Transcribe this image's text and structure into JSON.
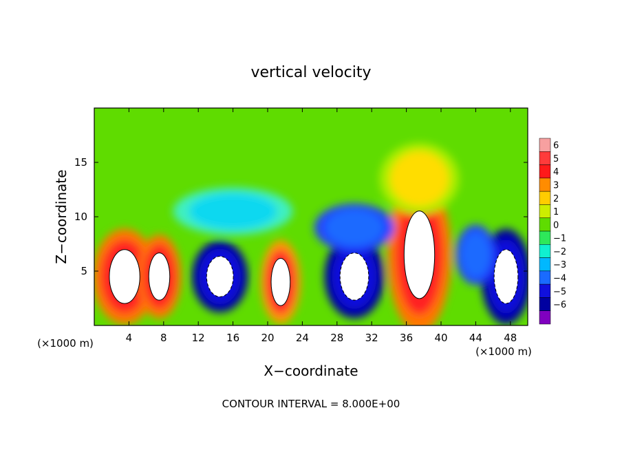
{
  "chart_data": {
    "type": "heatmap",
    "title": "vertical velocity",
    "xlabel": "X−coordinate",
    "ylabel": "Z−coordinate",
    "x_units_left": "(×1000 m)",
    "x_units_right": "(×1000 m)",
    "footer": "CONTOUR INTERVAL = 8.000E+00",
    "xlim": [
      0,
      50
    ],
    "ylim": [
      0,
      20
    ],
    "x_ticks": [
      4,
      8,
      12,
      16,
      20,
      24,
      28,
      32,
      36,
      40,
      44,
      48
    ],
    "y_ticks": [
      5,
      10,
      15
    ],
    "colorbar": {
      "levels": [
        6,
        5,
        4,
        3,
        2,
        1,
        0,
        -1,
        -2,
        -3,
        -4,
        -5,
        -6
      ],
      "colors": [
        "#f7a0a0",
        "#ff3b3b",
        "#ff1a1a",
        "#ff8c00",
        "#ffcc00",
        "#ccee00",
        "#5fdc00",
        "#2ee85a",
        "#10f0d0",
        "#00b8ff",
        "#1a6bff",
        "#1010dd",
        "#0000a0",
        "#8000c0"
      ],
      "labels": [
        "6",
        "5",
        "4",
        "3",
        "2",
        "1",
        "0",
        "−1",
        "−2",
        "−3",
        "−4",
        "−5",
        "−6"
      ]
    },
    "features": [
      {
        "x": 3.5,
        "z": 4.5,
        "value": 8,
        "rx": 3.2,
        "rz": 4.0
      },
      {
        "x": 7.5,
        "z": 4.5,
        "value": 7,
        "rx": 2.2,
        "rz": 3.5
      },
      {
        "x": 14.5,
        "z": 4.5,
        "value": -7,
        "rx": 2.8,
        "rz": 3.0
      },
      {
        "x": 21.5,
        "z": 4.0,
        "value": 6,
        "rx": 2.0,
        "rz": 3.5
      },
      {
        "x": 30.0,
        "z": 4.5,
        "value": -7,
        "rx": 3.0,
        "rz": 3.5
      },
      {
        "x": 37.5,
        "z": 6.5,
        "value": 9,
        "rx": 3.2,
        "rz": 6.5
      },
      {
        "x": 47.5,
        "z": 4.5,
        "value": -7,
        "rx": 2.5,
        "rz": 4.0
      },
      {
        "x": 44.0,
        "z": 6.5,
        "value": -4,
        "rx": 2.0,
        "rz": 2.5
      },
      {
        "x": 37.5,
        "z": 13.5,
        "value": 2,
        "rx": 4.0,
        "rz": 3.0
      },
      {
        "x": 16.0,
        "z": 10.5,
        "value": -2,
        "rx": 6.0,
        "rz": 2.0
      },
      {
        "x": 30.0,
        "z": 9.0,
        "value": -3,
        "rx": 4.0,
        "rz": 2.0
      }
    ]
  }
}
